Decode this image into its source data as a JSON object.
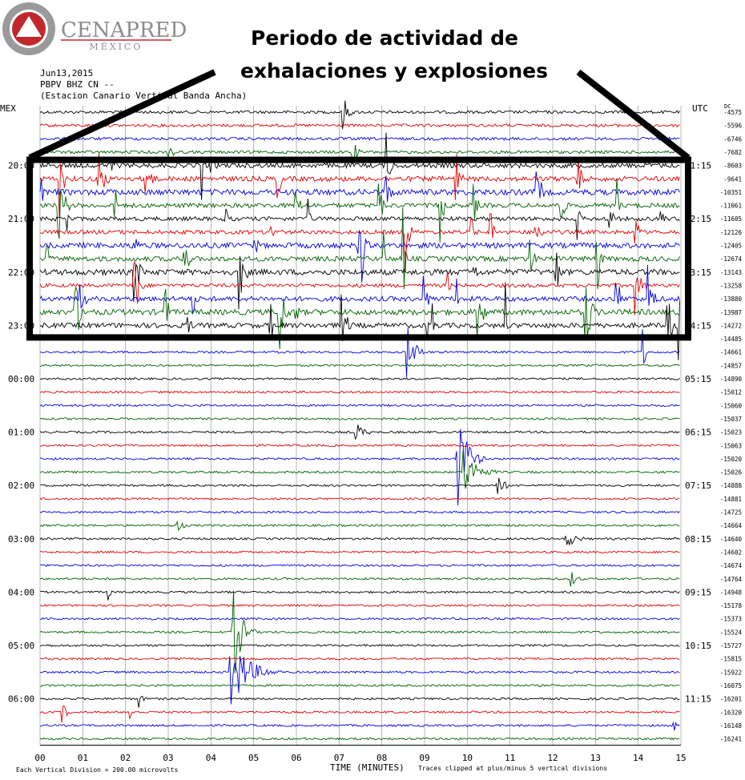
{
  "logo": {
    "name": "CENAPRED",
    "subtitle": "MÉXICO"
  },
  "annotation": {
    "line1": "Periodo de actividad de",
    "line2": "exhalaciones y explosiones"
  },
  "header": {
    "date": "Jun13,2015",
    "channel": "PBPV BHZ CN --",
    "station": "(Estacion Canario Vertical Banda Ancha)"
  },
  "labels": {
    "left_zone": "MEX",
    "right_zone": "UTC",
    "right_top_extra": "DC"
  },
  "footer": {
    "division": "Each Vertical Division =  200.00 microvolts",
    "xlabel": "TIME (MINUTES)",
    "clip_note": "Traces clipped at plus/minus 5 vertical divisions"
  },
  "colors": {
    "trace_cycle": [
      "#000000",
      "#e00000",
      "#0000e0",
      "#006000"
    ],
    "annotation_box": "#000000",
    "logo_red": "#c0282d",
    "logo_gray": "#8c8c8c",
    "grid": "#888888"
  },
  "chart_data": {
    "type": "line",
    "title": "",
    "xlabel": "TIME (MINUTES)",
    "ylabel": "",
    "xlim": [
      0,
      15
    ],
    "x_ticks": [
      "00",
      "01",
      "02",
      "03",
      "04",
      "05",
      "06",
      "07",
      "08",
      "09",
      "10",
      "11",
      "12",
      "13",
      "14",
      "15"
    ],
    "left_time_labels": [
      {
        "row": 4,
        "label": "20:00"
      },
      {
        "row": 8,
        "label": "21:00"
      },
      {
        "row": 12,
        "label": "22:00"
      },
      {
        "row": 16,
        "label": "23:00"
      },
      {
        "row": 20,
        "label": "00:00"
      },
      {
        "row": 24,
        "label": "01:00"
      },
      {
        "row": 28,
        "label": "02:00"
      },
      {
        "row": 32,
        "label": "03:00"
      },
      {
        "row": 36,
        "label": "04:00"
      },
      {
        "row": 40,
        "label": "05:00"
      },
      {
        "row": 44,
        "label": "06:00"
      }
    ],
    "right_time_labels": [
      {
        "row": 4,
        "label": "01:15"
      },
      {
        "row": 8,
        "label": "02:15"
      },
      {
        "row": 12,
        "label": "03:15"
      },
      {
        "row": 16,
        "label": "04:15"
      },
      {
        "row": 20,
        "label": "05:15"
      },
      {
        "row": 24,
        "label": "06:15"
      },
      {
        "row": 28,
        "label": "07:15"
      },
      {
        "row": 32,
        "label": "08:15"
      },
      {
        "row": 36,
        "label": "09:15"
      },
      {
        "row": 40,
        "label": "10:15"
      },
      {
        "row": 44,
        "label": "11:15"
      }
    ],
    "dc_offsets": [
      "-4575",
      "-5596",
      "-6746",
      "-7682",
      "-8603",
      "-9641",
      "-10351",
      "-11061",
      "-11605",
      "-12126",
      "-12405",
      "-12674",
      "-13143",
      "-13258",
      "-13880",
      "-13987",
      "-14272",
      "-14485",
      "-14661",
      "-14857",
      "-14890",
      "-15012",
      "-15060",
      "-15037",
      "-15023",
      "-15063",
      "-15020",
      "-15026",
      "-14888",
      "-14881",
      "-14725",
      "-14664",
      "-14640",
      "-14602",
      "-14674",
      "-14764",
      "-14948",
      "-15178",
      "-15373",
      "-15524",
      "-15727",
      "-15815",
      "-15922",
      "-16075",
      "-16201",
      "-16320",
      "-16148",
      "-16241"
    ],
    "activity_window_rows": [
      4,
      16
    ],
    "events": [
      {
        "row": 24,
        "minute": 7.4,
        "amp": 0.7,
        "len": 0.7
      },
      {
        "row": 26,
        "minute": 9.75,
        "amp": 5.0,
        "len": 0.7
      },
      {
        "row": 27,
        "minute": 9.9,
        "amp": 2.0,
        "len": 1.0
      },
      {
        "row": 28,
        "minute": 10.7,
        "amp": 1.0,
        "len": 0.5
      },
      {
        "row": 31,
        "minute": 3.2,
        "amp": 0.7,
        "len": 0.4
      },
      {
        "row": 32,
        "minute": 12.3,
        "amp": 0.8,
        "len": 0.8
      },
      {
        "row": 35,
        "minute": 12.4,
        "amp": 0.8,
        "len": 0.5
      },
      {
        "row": 36,
        "minute": 1.6,
        "amp": 0.6,
        "len": 0.2
      },
      {
        "row": 39,
        "minute": 4.5,
        "amp": 4.5,
        "len": 0.6
      },
      {
        "row": 42,
        "minute": 4.45,
        "amp": 3.0,
        "len": 1.3
      },
      {
        "row": 44,
        "minute": 2.3,
        "amp": 0.8,
        "len": 0.3
      },
      {
        "row": 45,
        "minute": 0.5,
        "amp": 0.9,
        "len": 0.4
      },
      {
        "row": 45,
        "minute": 2.1,
        "amp": 0.8,
        "len": 0.2
      },
      {
        "row": 46,
        "minute": 14.8,
        "amp": 0.9,
        "len": 0.2
      },
      {
        "row": 18,
        "minute": 8.6,
        "amp": 2.0,
        "len": 0.6
      },
      {
        "row": 18,
        "minute": 14.1,
        "amp": 2.0,
        "len": 0.2
      },
      {
        "row": 0,
        "minute": 7.1,
        "amp": 1.3,
        "len": 0.4
      },
      {
        "row": 3,
        "minute": 3.0,
        "amp": 1.5,
        "len": 0.3
      },
      {
        "row": 3,
        "minute": 7.3,
        "amp": 1.5,
        "len": 0.3
      }
    ]
  }
}
